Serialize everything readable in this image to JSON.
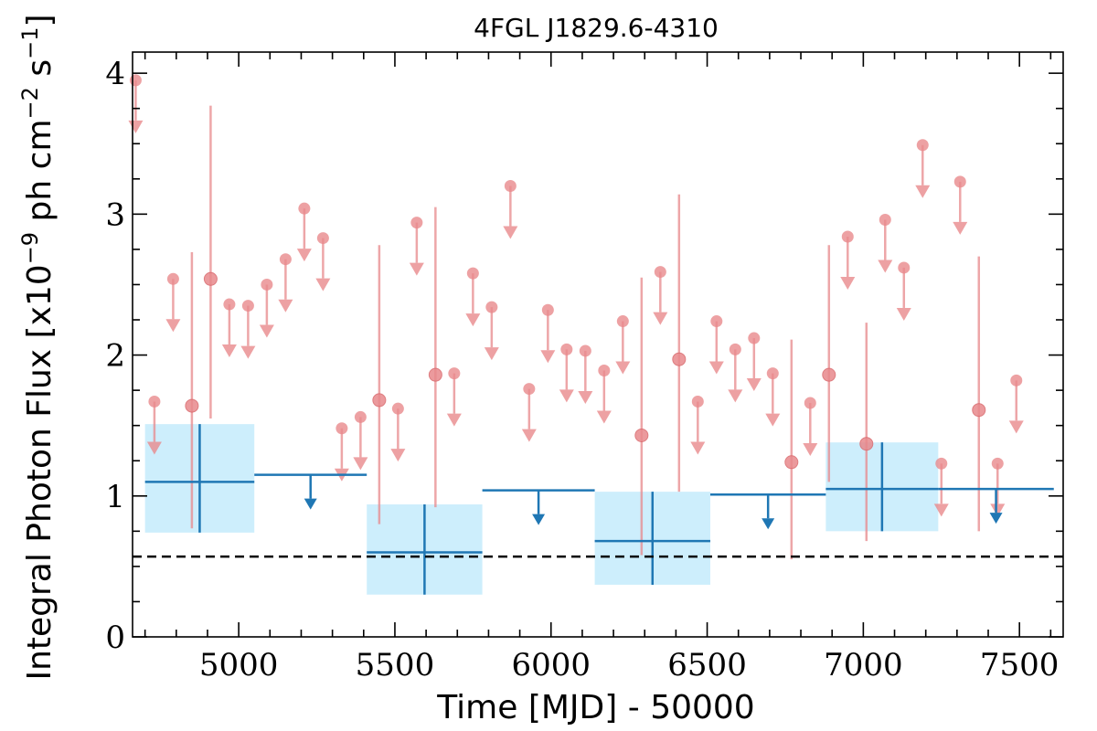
{
  "chart_data": {
    "type": "scatter",
    "title": "4FGL J1829.6-4310",
    "xlabel": "Time [MJD] - 50000",
    "ylabel_main": "Integral Photon Flux [x10",
    "ylabel_exp1": "−9",
    "ylabel_mid": " ph cm",
    "ylabel_exp2": "−2",
    "ylabel_mid2": " s",
    "ylabel_exp3": "−1",
    "ylabel_end": "]",
    "xlim": [
      4660,
      7640
    ],
    "ylim": [
      0,
      4.15
    ],
    "x_ticks": [
      5000,
      5500,
      6000,
      6500,
      7000,
      7500
    ],
    "y_ticks": [
      0,
      1,
      2,
      3,
      4
    ],
    "reference_line": 0.57,
    "colors": {
      "fine": "#e8898c",
      "coarse": "#1f77b4",
      "box_fill": "#cdeefc",
      "reference": "#000000"
    },
    "fine_bins": [
      {
        "x": 4670,
        "y": 3.95,
        "type": "ul"
      },
      {
        "x": 4730,
        "y": 1.67,
        "type": "ul"
      },
      {
        "x": 4790,
        "y": 2.54,
        "type": "ul"
      },
      {
        "x": 4850,
        "y": 1.64,
        "type": "det",
        "lo": 0.77,
        "hi": 2.73
      },
      {
        "x": 4910,
        "y": 2.54,
        "type": "det",
        "lo": 1.55,
        "hi": 3.77
      },
      {
        "x": 4970,
        "y": 2.36,
        "type": "ul"
      },
      {
        "x": 5030,
        "y": 2.35,
        "type": "ul"
      },
      {
        "x": 5090,
        "y": 2.5,
        "type": "ul"
      },
      {
        "x": 5150,
        "y": 2.68,
        "type": "ul"
      },
      {
        "x": 5210,
        "y": 3.04,
        "type": "ul"
      },
      {
        "x": 5270,
        "y": 2.83,
        "type": "ul"
      },
      {
        "x": 5330,
        "y": 1.48,
        "type": "ul"
      },
      {
        "x": 5390,
        "y": 1.56,
        "type": "ul"
      },
      {
        "x": 5450,
        "y": 1.68,
        "type": "det",
        "lo": 0.8,
        "hi": 2.78
      },
      {
        "x": 5510,
        "y": 1.62,
        "type": "ul"
      },
      {
        "x": 5570,
        "y": 2.94,
        "type": "ul"
      },
      {
        "x": 5630,
        "y": 1.86,
        "type": "det",
        "lo": 0.92,
        "hi": 3.05
      },
      {
        "x": 5690,
        "y": 1.87,
        "type": "ul"
      },
      {
        "x": 5750,
        "y": 2.58,
        "type": "ul"
      },
      {
        "x": 5810,
        "y": 2.34,
        "type": "ul"
      },
      {
        "x": 5870,
        "y": 3.2,
        "type": "ul"
      },
      {
        "x": 5930,
        "y": 1.76,
        "type": "ul"
      },
      {
        "x": 5990,
        "y": 2.32,
        "type": "ul"
      },
      {
        "x": 6050,
        "y": 2.04,
        "type": "ul"
      },
      {
        "x": 6110,
        "y": 2.03,
        "type": "ul"
      },
      {
        "x": 6170,
        "y": 1.89,
        "type": "ul"
      },
      {
        "x": 6230,
        "y": 2.24,
        "type": "ul"
      },
      {
        "x": 6290,
        "y": 1.43,
        "type": "det",
        "lo": 0.58,
        "hi": 2.55
      },
      {
        "x": 6350,
        "y": 2.59,
        "type": "ul"
      },
      {
        "x": 6410,
        "y": 1.97,
        "type": "det",
        "lo": 1.03,
        "hi": 3.14
      },
      {
        "x": 6470,
        "y": 1.67,
        "type": "ul"
      },
      {
        "x": 6530,
        "y": 2.24,
        "type": "ul"
      },
      {
        "x": 6590,
        "y": 2.04,
        "type": "ul"
      },
      {
        "x": 6650,
        "y": 2.12,
        "type": "ul"
      },
      {
        "x": 6710,
        "y": 1.87,
        "type": "ul"
      },
      {
        "x": 6770,
        "y": 1.24,
        "type": "det",
        "lo": 0.55,
        "hi": 2.11
      },
      {
        "x": 6830,
        "y": 1.66,
        "type": "ul"
      },
      {
        "x": 6890,
        "y": 1.86,
        "type": "det",
        "lo": 1.1,
        "hi": 2.78
      },
      {
        "x": 6950,
        "y": 2.84,
        "type": "ul"
      },
      {
        "x": 7010,
        "y": 1.37,
        "type": "det",
        "lo": 0.68,
        "hi": 2.23
      },
      {
        "x": 7070,
        "y": 2.96,
        "type": "ul"
      },
      {
        "x": 7130,
        "y": 2.62,
        "type": "ul"
      },
      {
        "x": 7190,
        "y": 3.49,
        "type": "ul"
      },
      {
        "x": 7250,
        "y": 1.23,
        "type": "ul"
      },
      {
        "x": 7310,
        "y": 3.23,
        "type": "ul"
      },
      {
        "x": 7370,
        "y": 1.61,
        "type": "det",
        "lo": 0.75,
        "hi": 2.7
      },
      {
        "x": 7430,
        "y": 1.23,
        "type": "ul"
      },
      {
        "x": 7490,
        "y": 1.82,
        "type": "ul"
      }
    ],
    "coarse_bins": [
      {
        "x0": 4700,
        "x1": 5050,
        "y": 1.1,
        "type": "det",
        "lo": 0.74,
        "hi": 1.51
      },
      {
        "x0": 5050,
        "x1": 5410,
        "y": 1.15,
        "type": "ul"
      },
      {
        "x0": 5410,
        "x1": 5780,
        "y": 0.6,
        "type": "det",
        "lo": 0.3,
        "hi": 0.94
      },
      {
        "x0": 5780,
        "x1": 6140,
        "y": 1.04,
        "type": "ul"
      },
      {
        "x0": 6140,
        "x1": 6510,
        "y": 0.68,
        "type": "det",
        "lo": 0.37,
        "hi": 1.03
      },
      {
        "x0": 6510,
        "x1": 6880,
        "y": 1.01,
        "type": "ul"
      },
      {
        "x0": 6880,
        "x1": 7240,
        "y": 1.05,
        "type": "det",
        "lo": 0.75,
        "hi": 1.38
      },
      {
        "x0": 7240,
        "x1": 7610,
        "y": 1.05,
        "type": "ul"
      }
    ]
  }
}
